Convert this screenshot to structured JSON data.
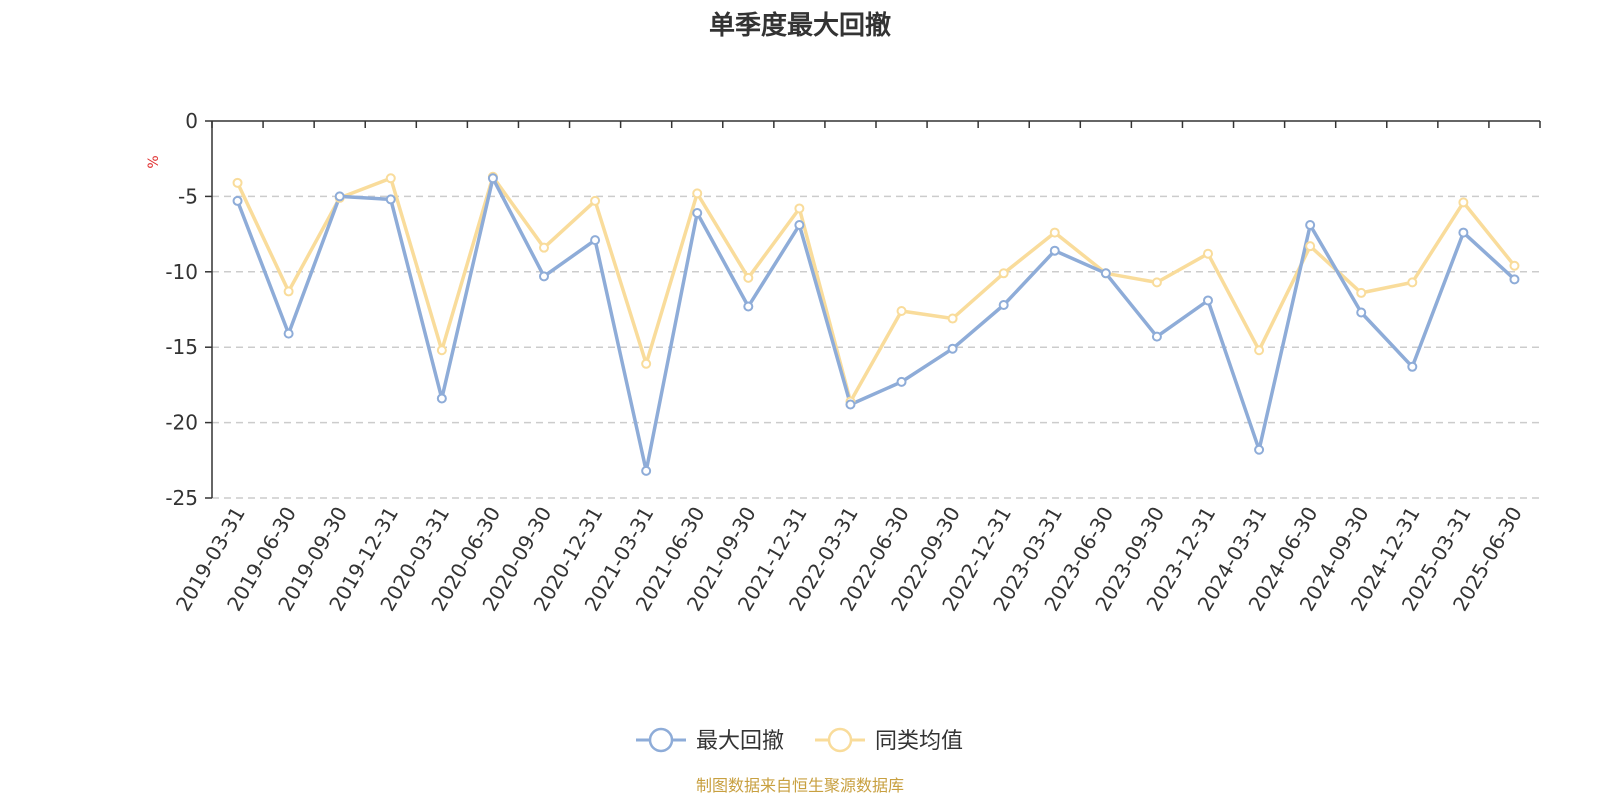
{
  "chart_data": {
    "type": "line",
    "title": "单季度最大回撤",
    "ylabel": "%",
    "ylim": [
      -25,
      0
    ],
    "yticks": [
      0,
      -5,
      -10,
      -15,
      -20,
      -25
    ],
    "grid": true,
    "legend_position": "bottom",
    "categories": [
      "2019-03-31",
      "2019-06-30",
      "2019-09-30",
      "2019-12-31",
      "2020-03-31",
      "2020-06-30",
      "2020-09-30",
      "2020-12-31",
      "2021-03-31",
      "2021-06-30",
      "2021-09-30",
      "2021-12-31",
      "2022-03-31",
      "2022-06-30",
      "2022-09-30",
      "2022-12-31",
      "2023-03-31",
      "2023-06-30",
      "2023-09-30",
      "2023-12-31",
      "2024-03-31",
      "2024-06-30",
      "2024-09-30",
      "2024-12-31",
      "2025-03-31",
      "2025-06-30"
    ],
    "series": [
      {
        "name": "最大回撤",
        "color": "#8eacd8",
        "values": [
          -5.3,
          -14.1,
          -5.0,
          -5.2,
          -18.4,
          -3.8,
          -10.3,
          -7.9,
          -23.2,
          -6.1,
          -12.3,
          -6.9,
          -18.8,
          -17.3,
          -15.1,
          -12.2,
          -8.6,
          -10.1,
          -14.3,
          -11.9,
          -21.8,
          -6.9,
          -12.7,
          -16.3,
          -7.4,
          -10.5
        ]
      },
      {
        "name": "同类均值",
        "color": "#f9dc9b",
        "values": [
          -4.1,
          -11.3,
          -5.1,
          -3.8,
          -15.2,
          -3.7,
          -8.4,
          -5.3,
          -16.1,
          -4.8,
          -10.4,
          -5.8,
          -18.6,
          -12.6,
          -13.1,
          -10.1,
          -7.4,
          -10.1,
          -10.7,
          -8.8,
          -15.2,
          -8.3,
          -11.4,
          -10.7,
          -5.4,
          -9.6
        ]
      }
    ],
    "source": "制图数据来自恒生聚源数据库",
    "axis_color": "#333333",
    "grid_color": "#cccccc",
    "unit_color": "#e03030",
    "source_color": "#c8a040"
  }
}
